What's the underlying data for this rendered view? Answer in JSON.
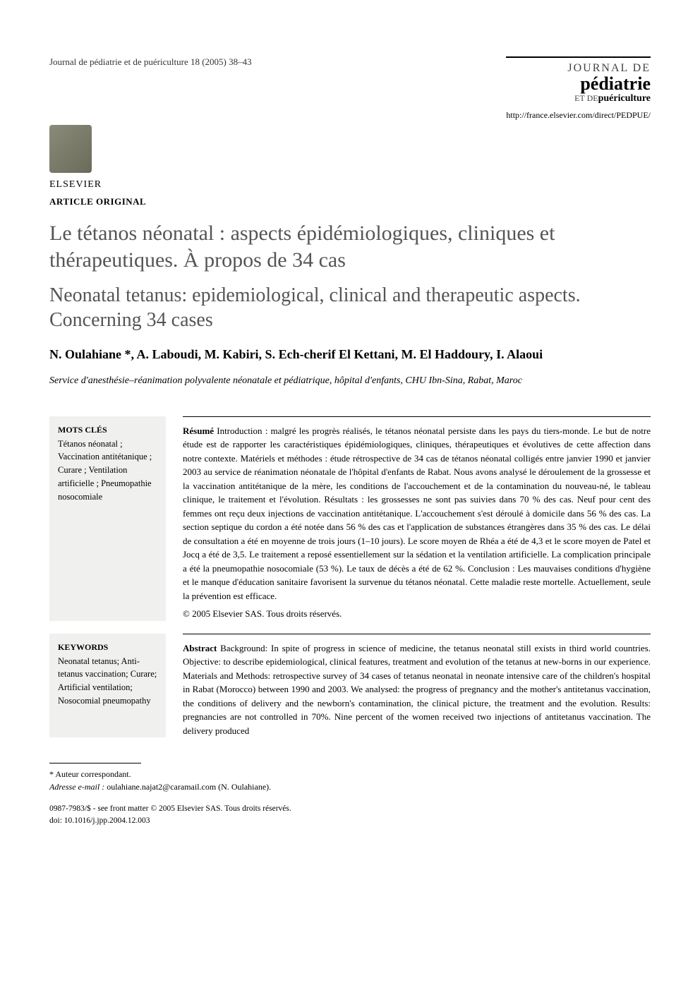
{
  "header": {
    "citation": "Journal de pédiatrie et de puériculture 18 (2005) 38–43",
    "journal_logo": {
      "line1": "JOURNAL DE",
      "line2": "pédiatrie",
      "line3_prefix": "ET DE",
      "line3_bold": "puériculture"
    },
    "url": "http://france.elsevier.com/direct/PEDPUE/",
    "publisher": "ELSEVIER",
    "article_type": "ARTICLE ORIGINAL"
  },
  "titles": {
    "fr": "Le tétanos néonatal : aspects épidémiologiques, cliniques et thérapeutiques. À propos de 34 cas",
    "en": "Neonatal tetanus: epidemiological, clinical and therapeutic aspects. Concerning 34 cases"
  },
  "authors": "N. Oulahiane *, A. Laboudi, M. Kabiri, S. Ech-cherif El Kettani, M. El Haddoury, I. Alaoui",
  "affiliation": "Service d'anesthésie–réanimation polyvalente néonatale et pédiatrique, hôpital d'enfants, CHU Ibn-Sina, Rabat, Maroc",
  "mots_cles": {
    "heading": "MOTS CLÉS",
    "list": "Tétanos néonatal ; Vaccination antitétanique ; Curare ; Ventilation artificielle ; Pneumopathie nosocomiale"
  },
  "resume": {
    "lead": "Résumé",
    "body": " Introduction : malgré les progrès réalisés, le tétanos néonatal persiste dans les pays du tiers-monde. Le but de notre étude est de rapporter les caractéristiques épidémiologiques, cliniques, thérapeutiques et évolutives de cette affection dans notre contexte. Matériels et méthodes : étude rétrospective de 34 cas de tétanos néonatal colligés entre janvier 1990 et janvier 2003 au service de réanimation néonatale de l'hôpital d'enfants de Rabat. Nous avons analysé le déroulement de la grossesse et la vaccination antitétanique de la mère, les conditions de l'accouchement et de la contamination du nouveau-né, le tableau clinique, le traitement et l'évolution. Résultats : les grossesses ne sont pas suivies dans 70 % des cas. Neuf pour cent des femmes ont reçu deux injections de vaccination antitétanique. L'accouchement s'est déroulé à domicile dans 56 % des cas. La section septique du cordon a été notée dans 56 % des cas et l'application de substances étrangères dans 35 % des cas. Le délai de consultation a été en moyenne de trois jours (1–10 jours). Le score moyen de Rhéa a été de 4,3 et le score moyen de Patel et Jocq a été de 3,5. Le traitement a reposé essentiellement sur la sédation et la ventilation artificielle. La complication principale a été la pneumopathie nosocomiale (53 %). Le taux de décès a été de 62 %. Conclusion : Les mauvaises conditions d'hygiène et le manque d'éducation sanitaire favorisent la survenue du tétanos néonatal. Cette maladie reste mortelle. Actuellement, seule la prévention est efficace.",
    "copyright": "© 2005 Elsevier SAS. Tous droits réservés."
  },
  "keywords": {
    "heading": "KEYWORDS",
    "list": "Neonatal tetanus; Anti-tetanus vaccination; Curare; Artificial ventilation; Nosocomial pneumopathy"
  },
  "abstract": {
    "lead": "Abstract",
    "body": " Background: In spite of progress in science of medicine, the tetanus neonatal still exists in third world countries. Objective: to describe epidemiological, clinical features, treatment and evolution of the tetanus at new-borns in our experience. Materials and Methods: retrospective survey of 34 cases of tetanus neonatal in neonate intensive care of the children's hospital in Rabat (Morocco) between 1990 and 2003. We analysed: the progress of pregnancy and the mother's antitetanus vaccination, the conditions of delivery and the newborn's contamination, the clinical picture, the treatment and the evolution. Results: pregnancies are not controlled in 70%. Nine percent of the women received two injections of antitetanus vaccination. The delivery produced"
  },
  "footnote": {
    "corresponding": "* Auteur correspondant.",
    "email_label": "Adresse e-mail :",
    "email": " oulahiane.najat2@caramail.com (N. Oulahiane)."
  },
  "bottom": {
    "issn_line": "0987-7983/$ - see front matter © 2005 Elsevier SAS. Tous droits réservés.",
    "doi_line": "doi: 10.1016/j.jpp.2004.12.003"
  }
}
